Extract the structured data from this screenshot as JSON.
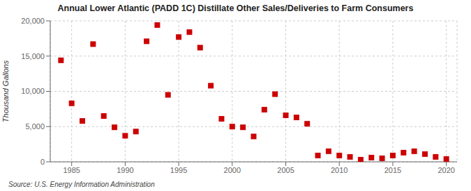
{
  "chart_data": {
    "type": "scatter",
    "title": "Annual Lower Atlantic (PADD 1C) Distillate Other Sales/Deliveries to Farm Consumers",
    "ylabel": "Thousand Gallons",
    "annotations": [
      "Source: U.S. Energy Information Administration"
    ],
    "x": [
      1984,
      1985,
      1986,
      1987,
      1988,
      1989,
      1990,
      1991,
      1992,
      1993,
      1994,
      1995,
      1996,
      1997,
      1998,
      1999,
      2000,
      2001,
      2002,
      2003,
      2004,
      2005,
      2006,
      2007,
      2008,
      2009,
      2010,
      2011,
      2012,
      2013,
      2014,
      2015,
      2016,
      2017,
      2018,
      2019,
      2020
    ],
    "values": [
      14400,
      8300,
      5800,
      16700,
      6500,
      4900,
      3700,
      4300,
      17100,
      19400,
      9500,
      17700,
      18400,
      16200,
      10800,
      6100,
      5000,
      4900,
      3600,
      7400,
      9600,
      6600,
      6300,
      5400,
      900,
      1500,
      900,
      700,
      300,
      600,
      500,
      900,
      1300,
      1500,
      1100,
      700,
      400
    ],
    "color": "#cc0000",
    "marker": "square",
    "xlim": [
      1983,
      2021
    ],
    "xticks": [
      1985,
      1990,
      1995,
      2000,
      2005,
      2010,
      2015,
      2020
    ],
    "ylim": [
      0,
      20000
    ],
    "yticks": [
      0,
      {
        "value": 5000,
        "label": "5,000"
      },
      {
        "value": 10000,
        "label": "10,000"
      },
      {
        "value": 15000,
        "label": "15,000"
      },
      {
        "value": 20000,
        "label": "20,000"
      }
    ],
    "grid": true
  }
}
